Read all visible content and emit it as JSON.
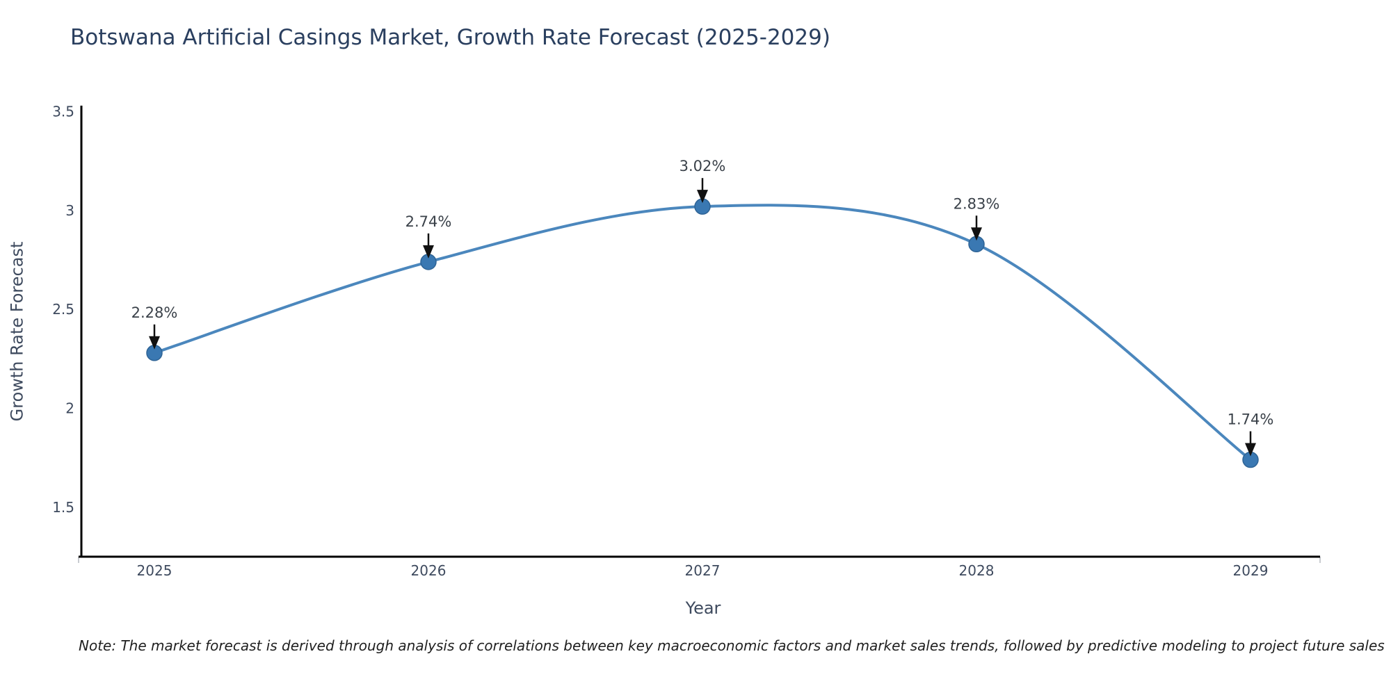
{
  "title": "Botswana Artificial Casings Market, Growth Rate Forecast (2025-2029)",
  "note": "Note: The market forecast is derived through analysis of correlations between key macroeconomic factors and market sales trends, followed by predictive modeling to project future sales",
  "chart_data": {
    "type": "line",
    "title": "Botswana Artificial Casings Market, Growth Rate Forecast (2025-2029)",
    "xlabel": "Year",
    "ylabel": "Growth Rate Forecast",
    "categories": [
      "2025",
      "2026",
      "2027",
      "2028",
      "2029"
    ],
    "series": [
      {
        "name": "Growth Rate Forecast",
        "values": [
          2.28,
          2.74,
          3.02,
          2.83,
          1.74
        ]
      }
    ],
    "point_labels": [
      "2.28%",
      "2.74%",
      "3.02%",
      "2.83%",
      "1.74%"
    ],
    "yticks": [
      1.5,
      2,
      2.5,
      3,
      3.5
    ],
    "ylim": [
      1.25,
      3.53
    ],
    "grid": false,
    "legend": false,
    "smooth_line": true,
    "annotation_arrows": true,
    "colors": {
      "line": "#4b87bd",
      "marker": "#3a78b2",
      "marker_edge": "#2f6496",
      "axis": "#000000",
      "tick_label": "#3e4a5e",
      "point_label": "#3a4149",
      "arrow": "#111111",
      "title": "#2a3f5f"
    }
  }
}
